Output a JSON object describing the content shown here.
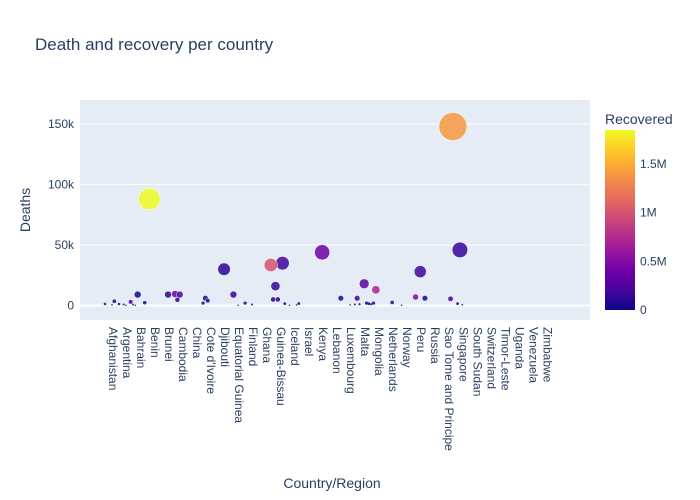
{
  "chart_data": {
    "type": "scatter",
    "title": "Death and recovery per country",
    "xlabel": "Country/Region",
    "ylabel": "Deaths",
    "ylim": [
      -12000,
      170000
    ],
    "yticks": [
      0,
      50000,
      100000,
      150000
    ],
    "ytick_labels": [
      "0",
      "50k",
      "100k",
      "150k"
    ],
    "x_tick_labels": [
      "Afghanistan",
      "Argentina",
      "Bahrain",
      "Benin",
      "Brunei",
      "Cambodia",
      "China",
      "Cote d'Ivoire",
      "Djibouti",
      "Equatorial Guinea",
      "Finland",
      "Ghana",
      "Guinea-Bissau",
      "Iceland",
      "Israel",
      "Kenya",
      "Lebanon",
      "Luxembourg",
      "Malta",
      "Mongolia",
      "Netherlands",
      "Norway",
      "Peru",
      "Russia",
      "Sao Tome and Principe",
      "Singapore",
      "South Sudan",
      "Switzerland",
      "Timor-Leste",
      "Uganda",
      "Venezuela",
      "Zimbabwe"
    ],
    "x_count": 188,
    "x_tick_step": 6,
    "colorbar": {
      "title": "Recovered",
      "range": [
        0,
        1850000
      ],
      "ticks": [
        0,
        500000,
        1000000,
        1500000
      ],
      "tick_labels": [
        "0",
        "0.5M",
        "1M",
        "1.5M"
      ],
      "colorscale": [
        "#0d0887",
        "#46039f",
        "#7201a8",
        "#9c179e",
        "#bd3786",
        "#d8576b",
        "#ed7953",
        "#fb9f3a",
        "#fdca26",
        "#f0f921"
      ]
    },
    "grid": true,
    "points": [
      {
        "x": 0,
        "deaths": 1300,
        "recovered": 30000
      },
      {
        "x": 3,
        "deaths": 500,
        "recovered": 8000
      },
      {
        "x": 4,
        "deaths": 3500,
        "recovered": 60000
      },
      {
        "x": 6,
        "deaths": 1200,
        "recovered": 20000
      },
      {
        "x": 8,
        "deaths": 800,
        "recovered": 10000
      },
      {
        "x": 9,
        "deaths": 200,
        "recovered": 3000
      },
      {
        "x": 11,
        "deaths": 3000,
        "recovered": 200000
      },
      {
        "x": 12,
        "deaths": 700,
        "recovered": 15000
      },
      {
        "x": 13,
        "deaths": 200,
        "recovered": 5000
      },
      {
        "x": 14,
        "deaths": 9000,
        "recovered": 20000
      },
      {
        "x": 17,
        "deaths": 2300,
        "recovered": 30000
      },
      {
        "x": 19,
        "deaths": 88000,
        "recovered": 1850000
      },
      {
        "x": 27,
        "deaths": 9000,
        "recovered": 90000
      },
      {
        "x": 30,
        "deaths": 9500,
        "recovered": 400000
      },
      {
        "x": 31,
        "deaths": 4700,
        "recovered": 80000
      },
      {
        "x": 32,
        "deaths": 9000,
        "recovered": 250000
      },
      {
        "x": 42,
        "deaths": 2000,
        "recovered": 30000
      },
      {
        "x": 43,
        "deaths": 6000,
        "recovered": 80000
      },
      {
        "x": 44,
        "deaths": 4000,
        "recovered": 60000
      },
      {
        "x": 51,
        "deaths": 30000,
        "recovered": 120000
      },
      {
        "x": 55,
        "deaths": 9000,
        "recovered": 150000
      },
      {
        "x": 57,
        "deaths": 300,
        "recovered": 10000
      },
      {
        "x": 60,
        "deaths": 2000,
        "recovered": 50000
      },
      {
        "x": 63,
        "deaths": 800,
        "recovered": 20000
      },
      {
        "x": 71,
        "deaths": 33500,
        "recovered": 1000000
      },
      {
        "x": 72,
        "deaths": 5000,
        "recovered": 70000
      },
      {
        "x": 73,
        "deaths": 16000,
        "recovered": 150000
      },
      {
        "x": 74,
        "deaths": 5000,
        "recovered": 80000
      },
      {
        "x": 76,
        "deaths": 35000,
        "recovered": 200000
      },
      {
        "x": 77,
        "deaths": 1500,
        "recovered": 30000
      },
      {
        "x": 79,
        "deaths": 200,
        "recovered": 5000
      },
      {
        "x": 82,
        "deaths": 500,
        "recovered": 10000
      },
      {
        "x": 83,
        "deaths": 1600,
        "recovered": 20000
      },
      {
        "x": 93,
        "deaths": 44000,
        "recovered": 400000
      },
      {
        "x": 101,
        "deaths": 6000,
        "recovered": 50000
      },
      {
        "x": 105,
        "deaths": 500,
        "recovered": 8000
      },
      {
        "x": 107,
        "deaths": 800,
        "recovered": 15000
      },
      {
        "x": 108,
        "deaths": 6000,
        "recovered": 200000
      },
      {
        "x": 109,
        "deaths": 1000,
        "recovered": 20000
      },
      {
        "x": 111,
        "deaths": 18000,
        "recovered": 300000
      },
      {
        "x": 112,
        "deaths": 2000,
        "recovered": 40000
      },
      {
        "x": 113,
        "deaths": 1500,
        "recovered": 30000
      },
      {
        "x": 114,
        "deaths": 1000,
        "recovered": 20000
      },
      {
        "x": 115,
        "deaths": 2000,
        "recovered": 60000
      },
      {
        "x": 116,
        "deaths": 13000,
        "recovered": 700000
      },
      {
        "x": 123,
        "deaths": 2500,
        "recovered": 100000
      },
      {
        "x": 127,
        "deaths": 300,
        "recovered": 5000
      },
      {
        "x": 133,
        "deaths": 7000,
        "recovered": 500000
      },
      {
        "x": 135,
        "deaths": 28000,
        "recovered": 200000
      },
      {
        "x": 137,
        "deaths": 6000,
        "recovered": 50000
      },
      {
        "x": 148,
        "deaths": 5500,
        "recovered": 200000
      },
      {
        "x": 149,
        "deaths": 148000,
        "recovered": 1400000
      },
      {
        "x": 151,
        "deaths": 1500,
        "recovered": 20000
      },
      {
        "x": 152,
        "deaths": 46000,
        "recovered": 150000
      },
      {
        "x": 153,
        "deaths": 600,
        "recovered": 10000
      }
    ]
  }
}
